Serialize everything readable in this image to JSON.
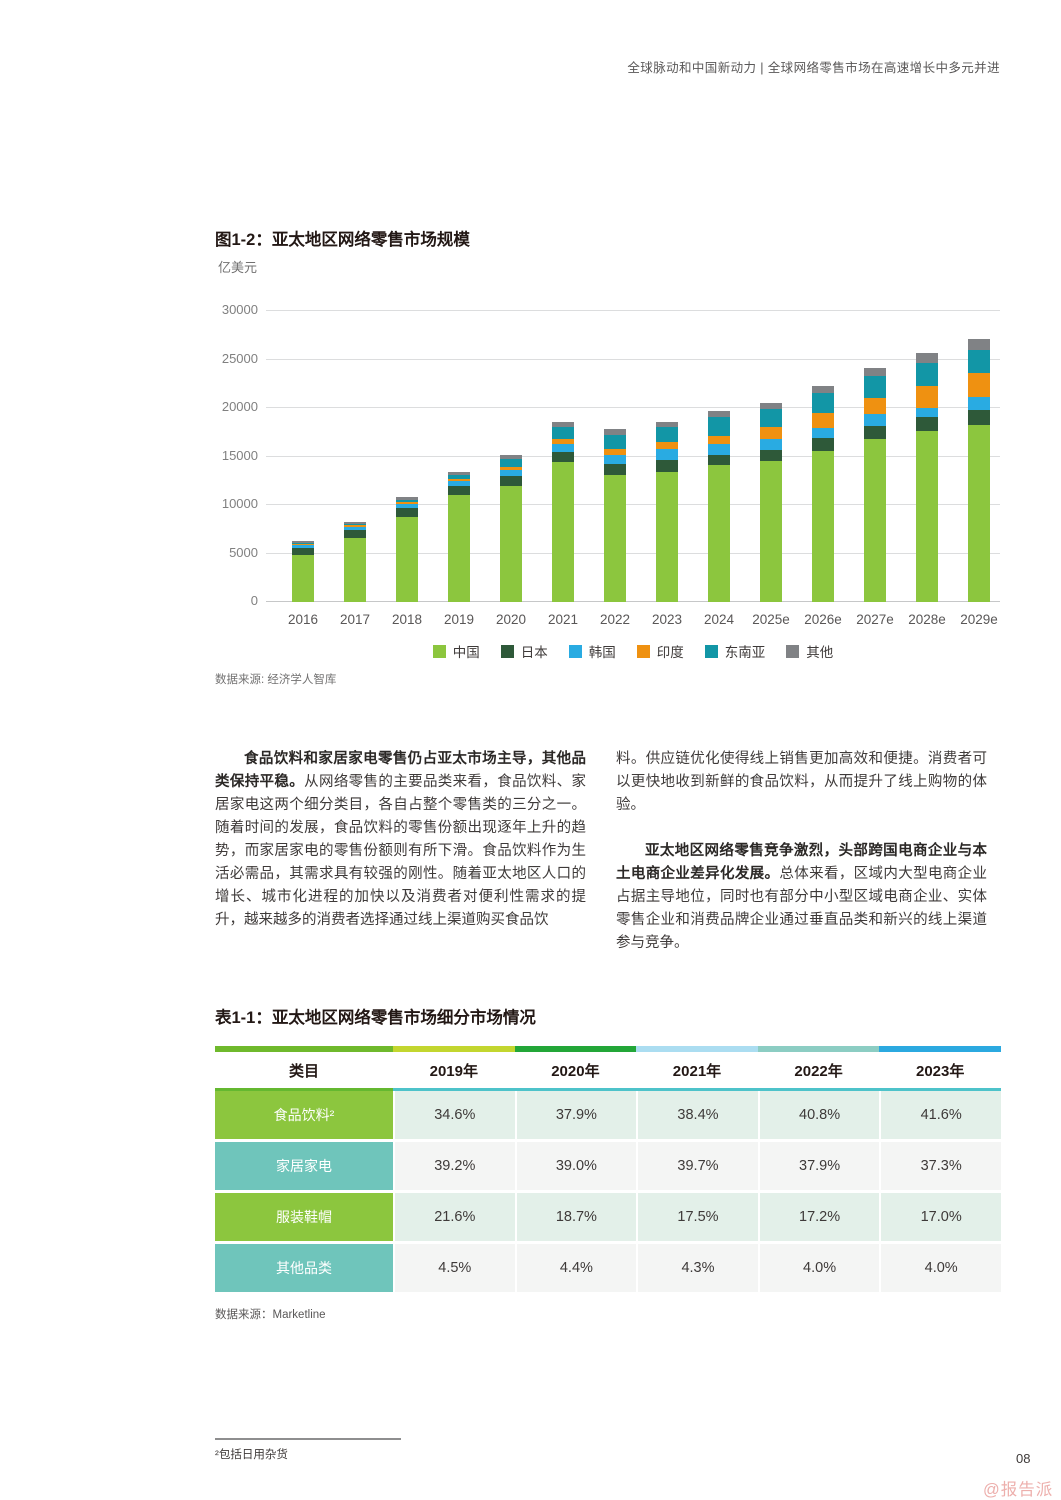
{
  "page_header": "全球脉动和中国新动力 | 全球网络零售市场在高速增长中多元并进",
  "chart_data": {
    "type": "bar",
    "stacked": true,
    "title": "图1-2：亚太地区网络零售市场规模",
    "unit": "亿美元",
    "categories": [
      "2016",
      "2017",
      "2018",
      "2019",
      "2020",
      "2021",
      "2022",
      "2023",
      "2024",
      "2025e",
      "2026e",
      "2027e",
      "2028e",
      "2029e"
    ],
    "series": [
      {
        "name": "中国",
        "color": "#8CC63E",
        "values": [
          4800,
          6600,
          8800,
          11000,
          11950,
          14400,
          13100,
          13400,
          14100,
          14550,
          15600,
          16800,
          17600,
          18300
        ]
      },
      {
        "name": "日本",
        "color": "#2E5939",
        "values": [
          800,
          850,
          900,
          950,
          1050,
          1100,
          1150,
          1200,
          1050,
          1100,
          1300,
          1300,
          1500,
          1500
        ]
      },
      {
        "name": "韩国",
        "color": "#29ABE2",
        "values": [
          280,
          330,
          420,
          500,
          650,
          800,
          900,
          1150,
          1150,
          1200,
          1050,
          1250,
          900,
          1300
        ]
      },
      {
        "name": "印度",
        "color": "#EF9111",
        "values": [
          80,
          110,
          160,
          220,
          300,
          500,
          600,
          700,
          850,
          1150,
          1500,
          1700,
          2300,
          2500
        ]
      },
      {
        "name": "东南亚",
        "color": "#1296A6",
        "values": [
          120,
          170,
          280,
          400,
          750,
          1250,
          1500,
          1550,
          1900,
          1850,
          2100,
          2250,
          2350,
          2400
        ]
      },
      {
        "name": "其他",
        "color": "#808285",
        "values": [
          160,
          180,
          260,
          330,
          500,
          550,
          550,
          600,
          650,
          700,
          750,
          800,
          1050,
          1100
        ]
      }
    ],
    "ylim": [
      0,
      30000
    ],
    "ytick_step": 5000,
    "grid": true,
    "legend_position": "bottom",
    "source": "数据来源: 经济学人智库"
  },
  "body": {
    "p1_bold": "食品饮料和家居家电零售仍占亚太市场主导，其他品类保持平稳。",
    "p1_text_col1": "从网络零售的主要品类来看，食品饮料、家居家电这两个细分类目，各自占整个零售类的三分之一。随着时间的发展，食品饮料的零售份额出现逐年上升的趋势，而家居家电的零售份额则有所下滑。食品饮料作为生活必需品，其需求具有较强的刚性。随着亚太地区人口的增长、城市化进程的加快以及消费者对便利性需求的提升，越来越多的消费者选择通过线上渠道购买食品饮",
    "p1_text_col2": "料。供应链优化使得线上销售更加高效和便捷。消费者可以更快地收到新鲜的食品饮料，从而提升了线上购物的体验。",
    "p2_bold": "亚太地区网络零售竞争激烈，头部跨国电商企业与本土电商企业差异化发展。",
    "p2_text": "总体来看，区域内大型电商企业占据主导地位，同时也有部分中小型区域电商企业、实体零售企业和消费品牌企业通过垂直品类和新兴的线上渠道参与竞争。"
  },
  "table": {
    "title": "表1-1：亚太地区网络零售市场细分市场情况",
    "topbar_colors": [
      "#6FB92C",
      "#C3D62F",
      "#23A638",
      "#ABDDF1",
      "#8CCDC3",
      "#2BA9E0"
    ],
    "separator_colors": [
      "#64B830",
      "#4EC3CA"
    ],
    "header": [
      "类目",
      "2019年",
      "2020年",
      "2021年",
      "2022年",
      "2023年"
    ],
    "rows": [
      {
        "label": "食品饮料²",
        "label_bg": "#8CC63E",
        "data_bg": "#E3F0E9",
        "values": [
          "34.6%",
          "37.9%",
          "38.4%",
          "40.8%",
          "41.6%"
        ]
      },
      {
        "label": "家居家电",
        "label_bg": "#6FC5BB",
        "data_bg": "#F4F5F4",
        "values": [
          "39.2%",
          "39.0%",
          "39.7%",
          "37.9%",
          "37.3%"
        ]
      },
      {
        "label": "服装鞋帽",
        "label_bg": "#8CC63E",
        "data_bg": "#E3F0E9",
        "values": [
          "21.6%",
          "18.7%",
          "17.5%",
          "17.2%",
          "17.0%"
        ]
      },
      {
        "label": "其他品类",
        "label_bg": "#6FC5BB",
        "data_bg": "#F4F5F4",
        "values": [
          "4.5%",
          "4.4%",
          "4.3%",
          "4.0%",
          "4.0%"
        ]
      }
    ],
    "source": "数据来源：Marketline"
  },
  "footnote": {
    "text": "²包括日用杂货"
  },
  "footer": {
    "page_number": "08",
    "watermark": "@报告派"
  }
}
